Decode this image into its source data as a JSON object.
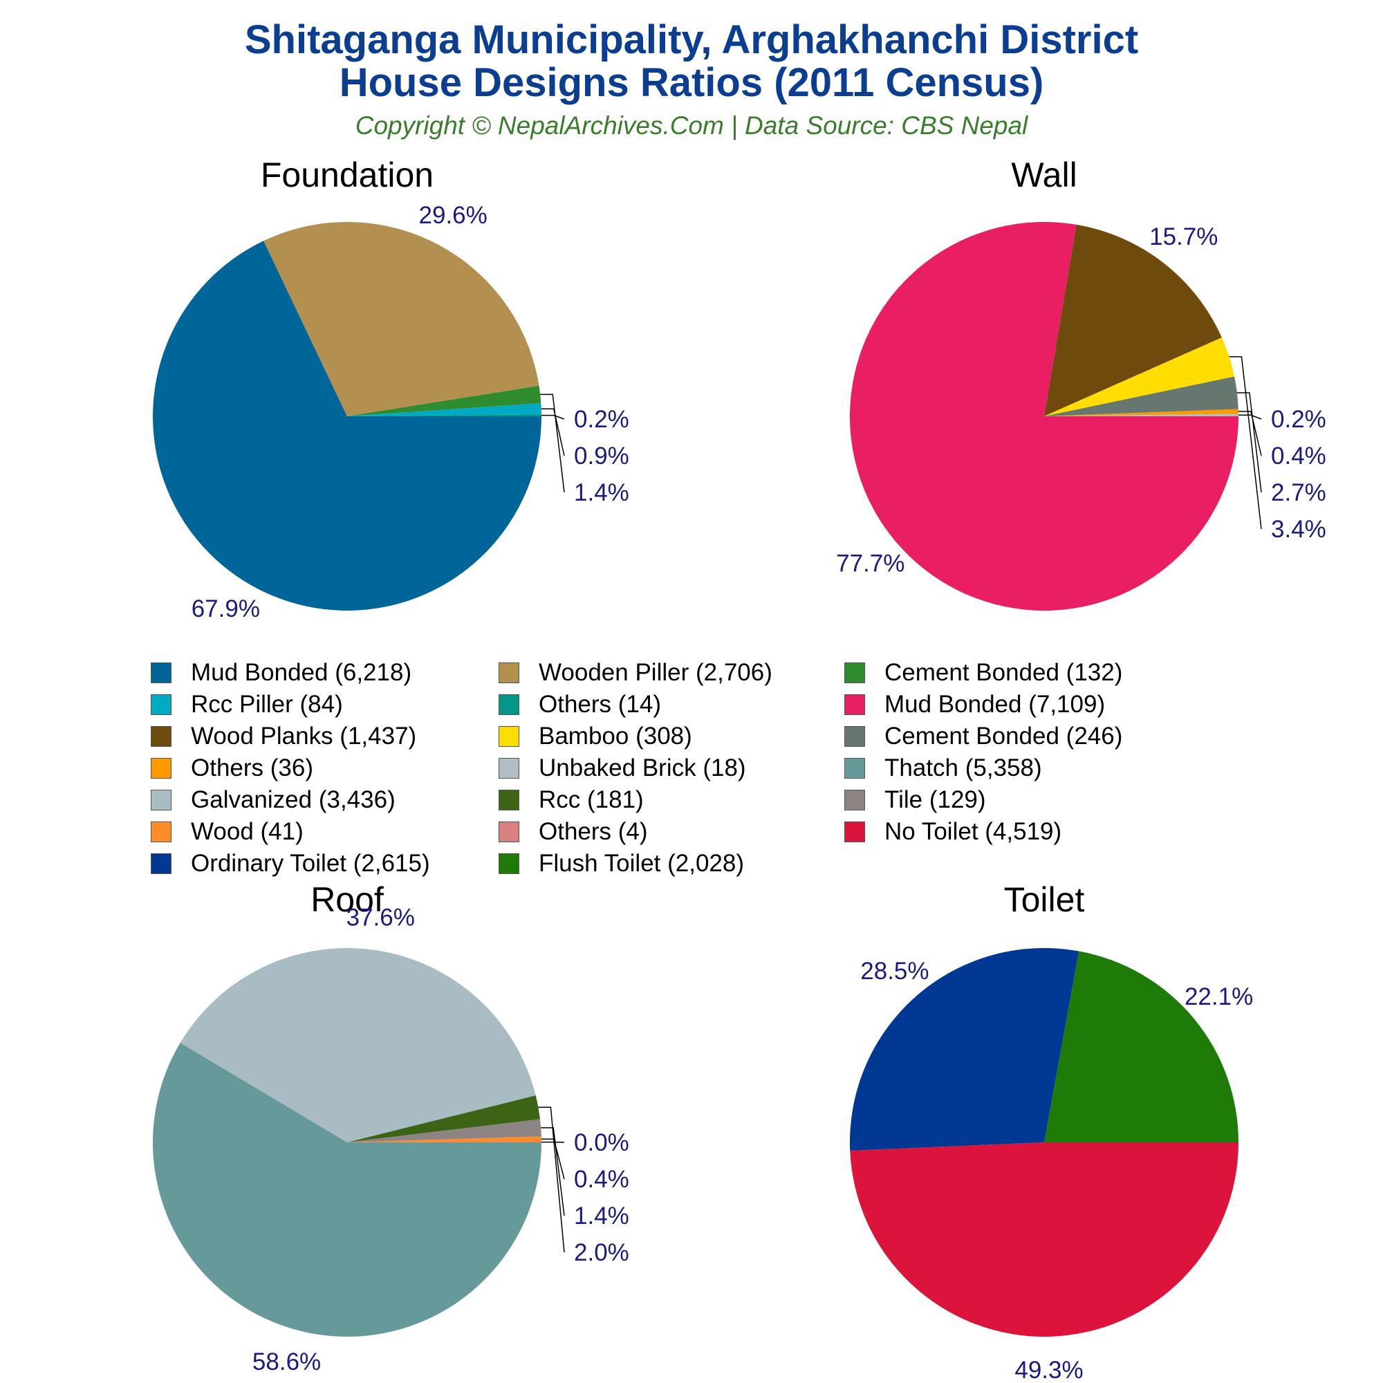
{
  "header": {
    "title_line_1": "Shitaganga Municipality, Arghakhanchi District",
    "title_line_2": "House Designs Ratios (2011 Census)",
    "subtitle": "Copyright © NepalArchives.Com | Data Source: CBS Nepal"
  },
  "chart_data": [
    {
      "type": "pie",
      "title": "Foundation",
      "slices": [
        {
          "name": "Mud Bonded",
          "value": 6218,
          "label": "67.9%",
          "color": "#006699"
        },
        {
          "name": "Wooden Piller",
          "value": 2706,
          "label": "29.6%",
          "color": "#b38f50"
        },
        {
          "name": "Cement Bonded",
          "value": 132,
          "label": "1.4%",
          "color": "#2e8b2e"
        },
        {
          "name": "Rcc Piller",
          "value": 84,
          "label": "0.9%",
          "color": "#00aac5"
        },
        {
          "name": "Others",
          "value": 14,
          "label": "0.2%",
          "color": "#009688"
        }
      ]
    },
    {
      "type": "pie",
      "title": "Wall",
      "slices": [
        {
          "name": "Mud Bonded",
          "value": 7109,
          "label": "77.7%",
          "color": "#e91e63"
        },
        {
          "name": "Wood Planks",
          "value": 1437,
          "label": "15.7%",
          "color": "#6e4a0c"
        },
        {
          "name": "Bamboo",
          "value": 308,
          "label": "3.4%",
          "color": "#ffdd00"
        },
        {
          "name": "Cement Bonded",
          "value": 246,
          "label": "2.7%",
          "color": "#65776f"
        },
        {
          "name": "Others",
          "value": 36,
          "label": "0.4%",
          "color": "#ff9900"
        },
        {
          "name": "Unbaked Brick",
          "value": 18,
          "label": "0.2%",
          "color": "#b0bec5"
        }
      ]
    },
    {
      "type": "pie",
      "title": "Roof",
      "slices": [
        {
          "name": "Thatch",
          "value": 5358,
          "label": "58.6%",
          "color": "#669999"
        },
        {
          "name": "Galvanized",
          "value": 3436,
          "label": "37.6%",
          "color": "#a9bbc3"
        },
        {
          "name": "Rcc",
          "value": 181,
          "label": "2.0%",
          "color": "#3d6414"
        },
        {
          "name": "Tile",
          "value": 129,
          "label": "1.4%",
          "color": "#8c8583"
        },
        {
          "name": "Wood",
          "value": 41,
          "label": "0.4%",
          "color": "#ff8c28"
        },
        {
          "name": "Others",
          "value": 4,
          "label": "0.0%",
          "color": "#d98080"
        }
      ]
    },
    {
      "type": "pie",
      "title": "Toilet",
      "slices": [
        {
          "name": "No Toilet",
          "value": 4519,
          "label": "49.3%",
          "color": "#dc143c"
        },
        {
          "name": "Ordinary Toilet",
          "value": 2615,
          "label": "28.5%",
          "color": "#003893"
        },
        {
          "name": "Flush Toilet",
          "value": 2028,
          "label": "22.1%",
          "color": "#1e7b07"
        }
      ]
    }
  ],
  "legend": {
    "items": [
      {
        "label": "Mud Bonded (6,218)",
        "color": "#006699"
      },
      {
        "label": "Wooden Piller (2,706)",
        "color": "#b38f50"
      },
      {
        "label": "Cement Bonded (132)",
        "color": "#2e8b2e"
      },
      {
        "label": "Rcc Piller (84)",
        "color": "#00aac5"
      },
      {
        "label": "Others (14)",
        "color": "#009688"
      },
      {
        "label": "Mud Bonded (7,109)",
        "color": "#e91e63"
      },
      {
        "label": "Wood Planks (1,437)",
        "color": "#6e4a0c"
      },
      {
        "label": "Bamboo (308)",
        "color": "#ffdd00"
      },
      {
        "label": "Cement Bonded (246)",
        "color": "#65776f"
      },
      {
        "label": "Others (36)",
        "color": "#ff9900"
      },
      {
        "label": "Unbaked Brick (18)",
        "color": "#b0bec5"
      },
      {
        "label": "Thatch (5,358)",
        "color": "#669999"
      },
      {
        "label": "Galvanized (3,436)",
        "color": "#a9bbc3"
      },
      {
        "label": "Rcc (181)",
        "color": "#3d6414"
      },
      {
        "label": "Tile (129)",
        "color": "#8c8583"
      },
      {
        "label": "Wood (41)",
        "color": "#ff8c28"
      },
      {
        "label": "Others (4)",
        "color": "#d98080"
      },
      {
        "label": "No Toilet (4,519)",
        "color": "#dc143c"
      },
      {
        "label": "Ordinary Toilet (2,615)",
        "color": "#003893"
      },
      {
        "label": "Flush Toilet (2,028)",
        "color": "#1e7b07"
      }
    ]
  }
}
